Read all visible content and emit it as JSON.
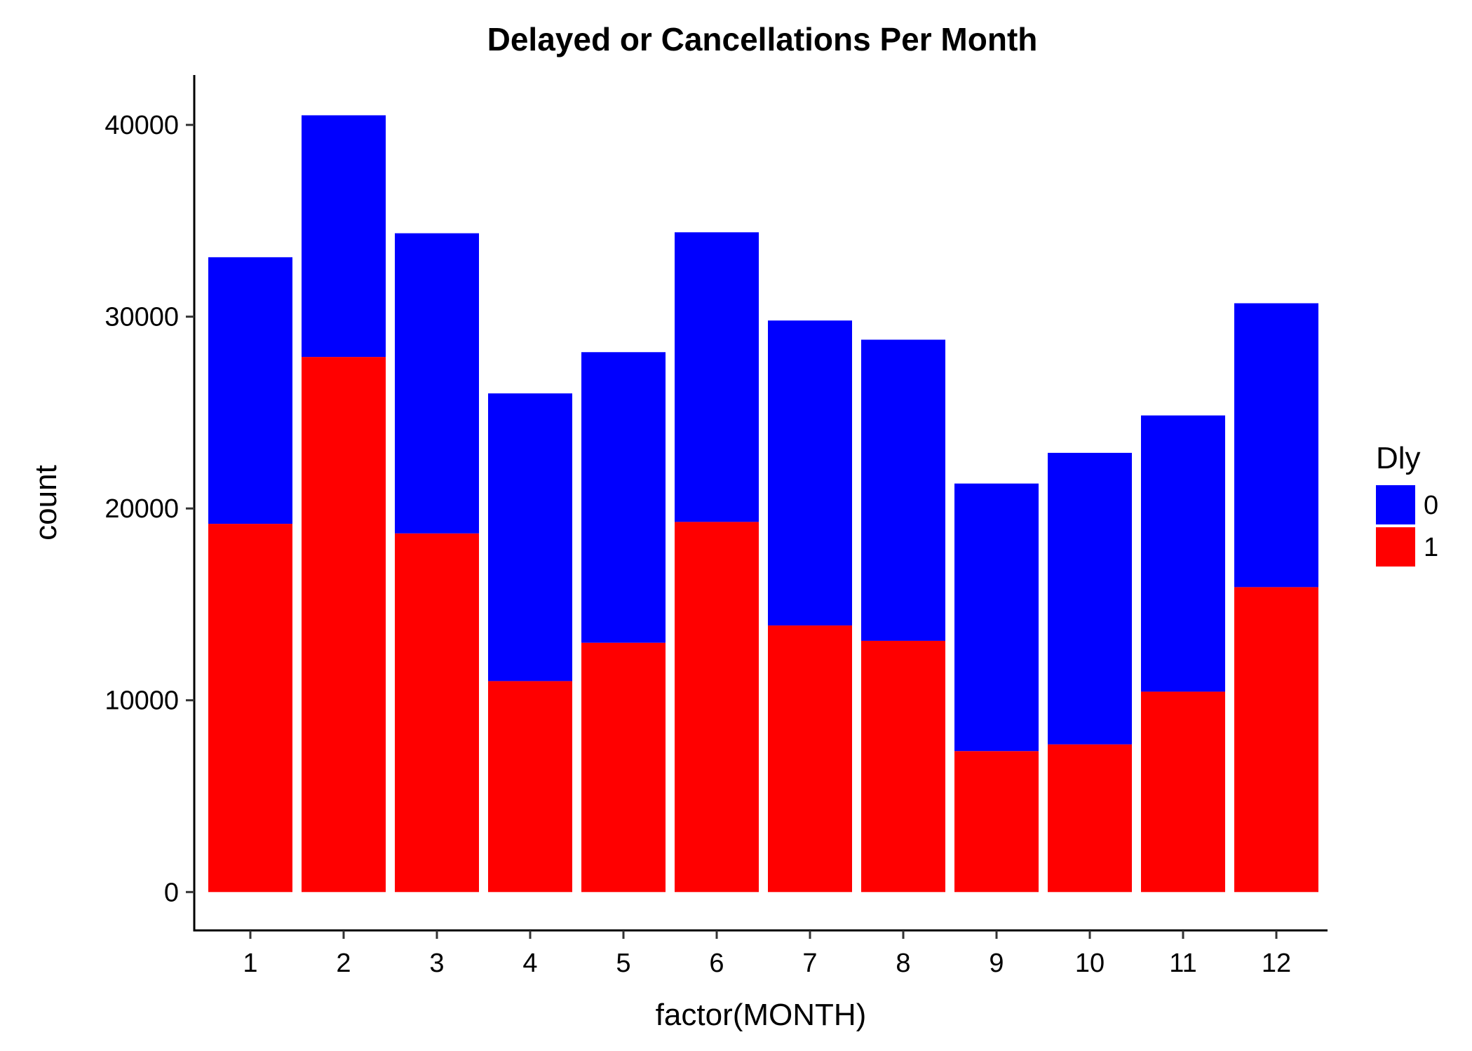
{
  "chart_data": {
    "type": "bar",
    "stacked": true,
    "title": "Delayed or Cancellations Per Month",
    "xlabel": "factor(MONTH)",
    "ylabel": "count",
    "categories": [
      "1",
      "2",
      "3",
      "4",
      "5",
      "6",
      "7",
      "8",
      "9",
      "10",
      "11",
      "12"
    ],
    "series": [
      {
        "name": "1",
        "color": "#ff0000",
        "values": [
          19200,
          27900,
          18700,
          11000,
          13000,
          19300,
          13900,
          13100,
          7350,
          7700,
          10450,
          15900
        ]
      },
      {
        "name": "0",
        "color": "#0000ff",
        "values": [
          13900,
          12600,
          15650,
          15000,
          15150,
          15100,
          15900,
          15700,
          13950,
          15200,
          14400,
          14800
        ]
      }
    ],
    "ylim": [
      -2000,
      42600
    ],
    "yticks": [
      0,
      10000,
      20000,
      30000,
      40000
    ],
    "ytick_labels": [
      "0",
      "10000",
      "20000",
      "30000",
      "40000"
    ],
    "legend": {
      "title": "Dly",
      "position": "right",
      "entries": [
        {
          "label": "0",
          "color": "#0000ff"
        },
        {
          "label": "1",
          "color": "#ff0000"
        }
      ]
    },
    "grid": false
  }
}
